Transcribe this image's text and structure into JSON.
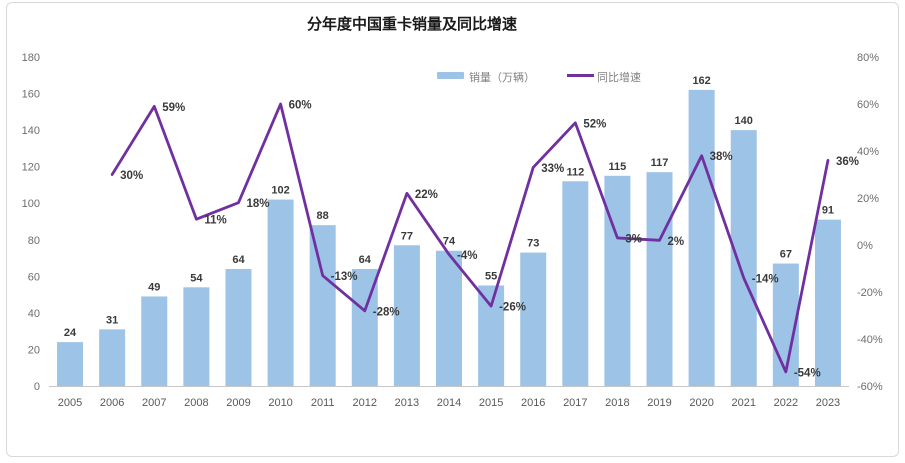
{
  "title": "分年度中国重卡销量及同比增速",
  "legend": {
    "sales_label": "销量（万辆）",
    "growth_label": "同比增速"
  },
  "colors": {
    "bar": "#9DC3E6",
    "line": "#7030A0",
    "value_label": "#3A3A3A",
    "axis_label": "#6E6E6E",
    "year_label": "#595959",
    "axis_line": "#C6C6C6",
    "legend_text": "#808080",
    "border": "#D9D9D9",
    "title": "#1A1A1A"
  },
  "chart_data": {
    "type": "combo",
    "title": "分年度中国重卡销量及同比增速",
    "categories": [
      "2005",
      "2006",
      "2007",
      "2008",
      "2009",
      "2010",
      "2011",
      "2012",
      "2013",
      "2014",
      "2015",
      "2016",
      "2017",
      "2018",
      "2019",
      "2020",
      "2021",
      "2022",
      "2023"
    ],
    "series": [
      {
        "name": "销量（万辆）",
        "type": "bar",
        "axis": "left",
        "values": [
          24,
          31,
          49,
          54,
          64,
          102,
          88,
          64,
          77,
          74,
          55,
          73,
          112,
          115,
          117,
          162,
          140,
          67,
          91
        ]
      },
      {
        "name": "同比增速",
        "type": "line",
        "axis": "right",
        "unit": "%",
        "values": [
          null,
          30,
          59,
          11,
          18,
          60,
          -13,
          -28,
          22,
          -4,
          -26,
          33,
          52,
          3,
          2,
          38,
          -14,
          -54,
          36
        ]
      }
    ],
    "left_axis": {
      "min": 0,
      "max": 180,
      "ticks": [
        0,
        20,
        40,
        60,
        80,
        100,
        120,
        140,
        160,
        180
      ]
    },
    "right_axis": {
      "min": -60,
      "max": 80,
      "ticks": [
        -60,
        -40,
        -20,
        0,
        20,
        40,
        60,
        80
      ],
      "suffix": "%"
    },
    "grid": false,
    "legend_position": "top",
    "data_labels": true
  }
}
